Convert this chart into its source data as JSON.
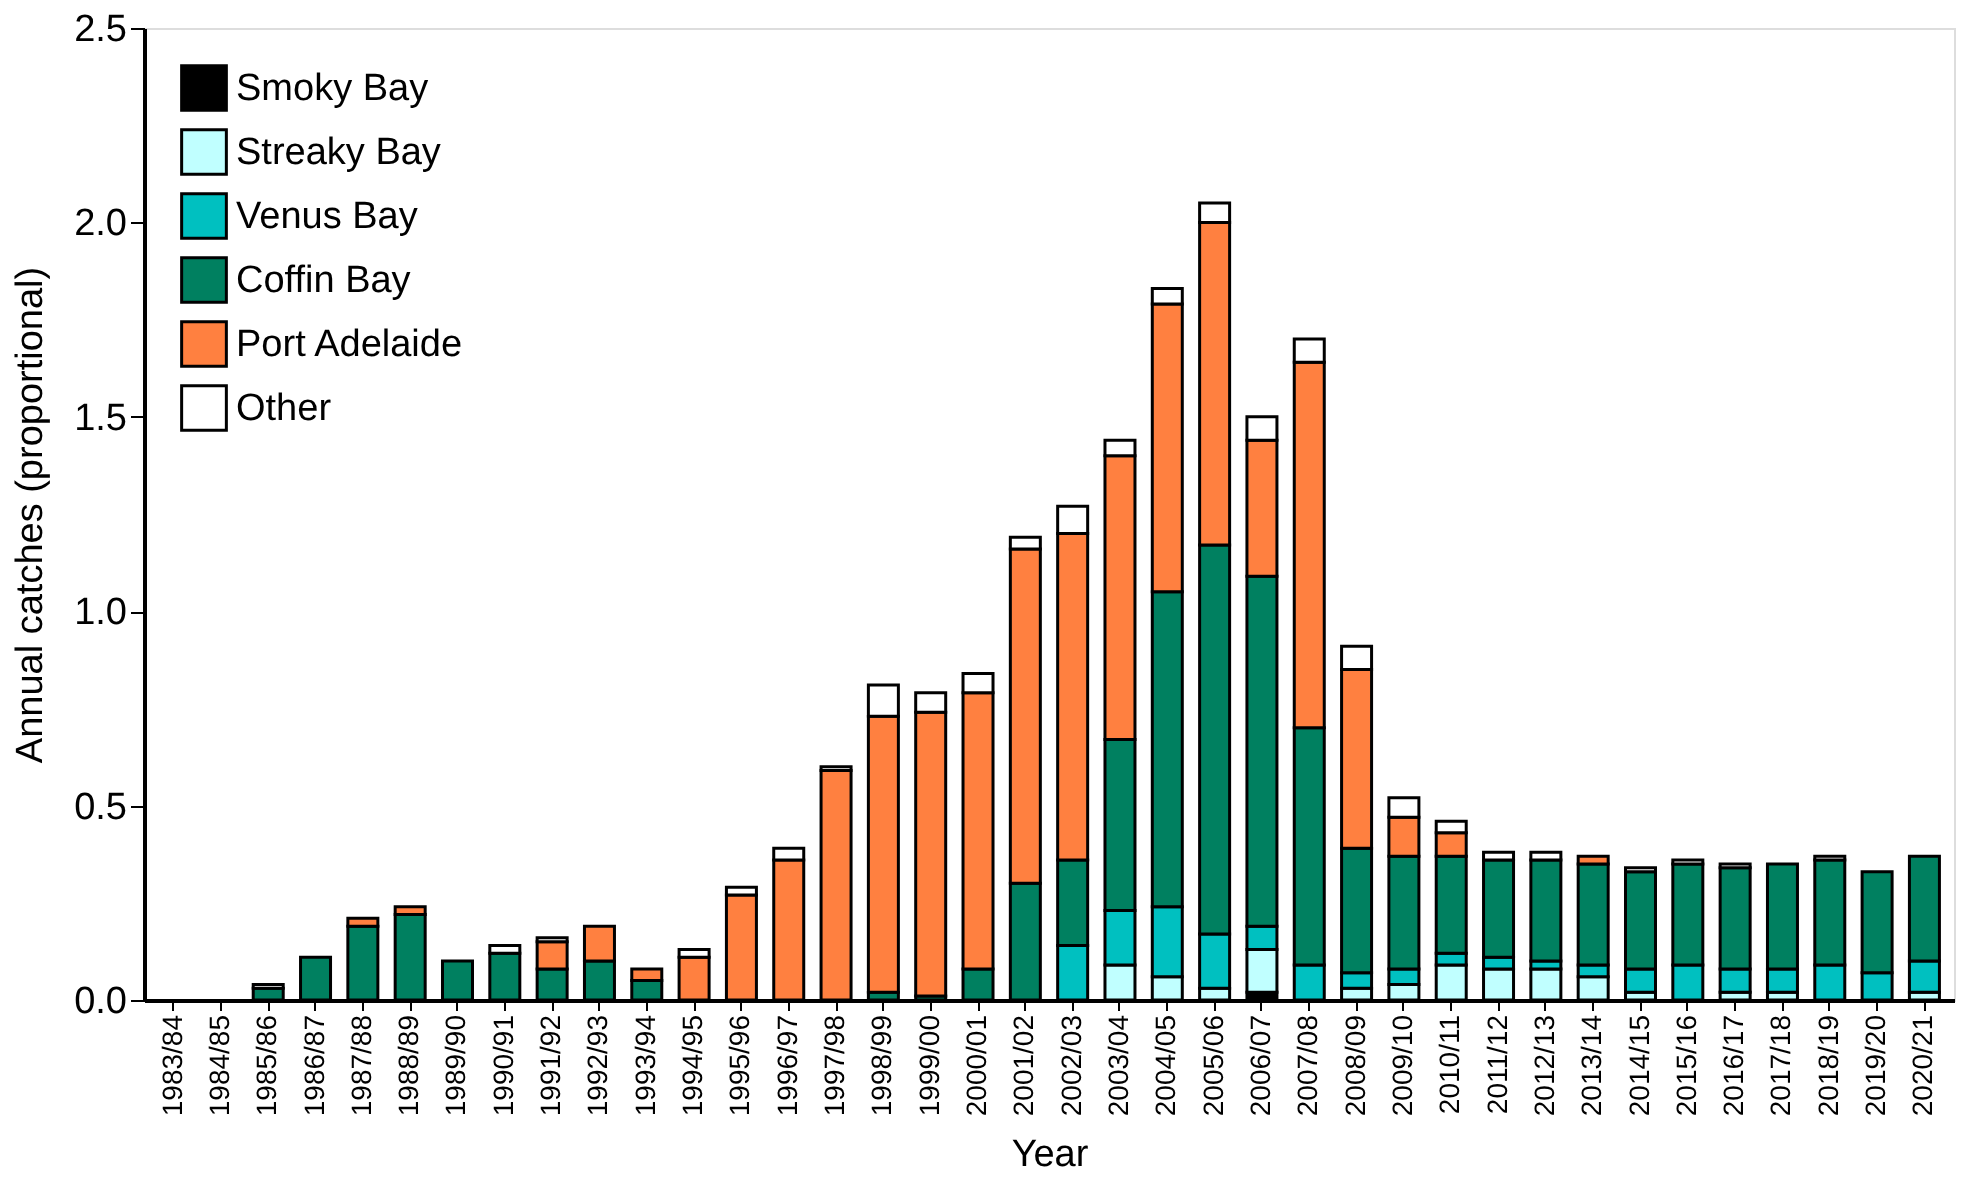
{
  "chart_data": {
    "type": "bar",
    "stacked": true,
    "xlabel": "Year",
    "ylabel": "Annual catches (proportional)",
    "categories": [
      "1983/84",
      "1984/85",
      "1985/86",
      "1986/87",
      "1987/88",
      "1988/89",
      "1989/90",
      "1990/91",
      "1991/92",
      "1992/93",
      "1993/94",
      "1994/95",
      "1995/96",
      "1996/97",
      "1997/98",
      "1998/99",
      "1999/00",
      "2000/01",
      "2001/02",
      "2002/03",
      "2003/04",
      "2004/05",
      "2005/06",
      "2006/07",
      "2007/08",
      "2008/09",
      "2009/10",
      "2010/11",
      "2011/12",
      "2012/13",
      "2013/14",
      "2014/15",
      "2015/16",
      "2016/17",
      "2017/18",
      "2018/19",
      "2019/20",
      "2020/21"
    ],
    "series": [
      {
        "name": "Smoky Bay",
        "color": "#000000",
        "values": [
          null,
          null,
          null,
          null,
          null,
          null,
          null,
          null,
          null,
          null,
          null,
          null,
          null,
          null,
          null,
          null,
          null,
          null,
          null,
          null,
          null,
          null,
          null,
          0.02,
          null,
          null,
          null,
          null,
          null,
          null,
          null,
          null,
          null,
          null,
          null,
          null,
          null,
          null
        ]
      },
      {
        "name": "Streaky Bay",
        "color": "#c0ffff",
        "values": [
          null,
          null,
          null,
          null,
          null,
          null,
          null,
          null,
          null,
          null,
          null,
          null,
          null,
          null,
          null,
          null,
          null,
          null,
          null,
          null,
          0.09,
          0.06,
          0.03,
          0.11,
          null,
          0.03,
          0.04,
          0.09,
          0.08,
          0.08,
          0.06,
          0.02,
          null,
          0.02,
          0.02,
          null,
          null,
          0.02
        ]
      },
      {
        "name": "Venus Bay",
        "color": "#00c0c0",
        "values": [
          null,
          null,
          null,
          null,
          null,
          null,
          null,
          null,
          null,
          null,
          null,
          null,
          null,
          null,
          null,
          null,
          null,
          null,
          null,
          0.14,
          0.14,
          0.18,
          0.14,
          0.06,
          0.09,
          0.04,
          0.04,
          0.03,
          0.03,
          0.02,
          0.03,
          0.06,
          0.09,
          0.06,
          0.06,
          0.09,
          0.07,
          0.08
        ]
      },
      {
        "name": "Coffin Bay",
        "color": "#008060",
        "values": [
          null,
          null,
          0.03,
          0.11,
          0.19,
          0.22,
          0.1,
          0.12,
          0.08,
          0.1,
          0.05,
          null,
          null,
          null,
          null,
          0.02,
          0.01,
          0.08,
          0.3,
          0.22,
          0.44,
          0.81,
          1.0,
          0.9,
          0.61,
          0.32,
          0.29,
          0.25,
          0.25,
          0.26,
          0.26,
          0.25,
          0.26,
          0.26,
          0.27,
          0.27,
          0.26,
          0.27
        ]
      },
      {
        "name": "Port Adelaide",
        "color": "#ff8040",
        "values": [
          null,
          null,
          null,
          null,
          0.02,
          0.02,
          null,
          null,
          0.07,
          0.09,
          0.03,
          0.11,
          0.27,
          0.36,
          0.59,
          0.71,
          0.73,
          0.71,
          0.86,
          0.84,
          0.73,
          0.74,
          0.83,
          0.35,
          0.94,
          0.46,
          0.1,
          0.06,
          null,
          null,
          0.02,
          null,
          null,
          null,
          null,
          null,
          null,
          null
        ]
      },
      {
        "name": "Other",
        "color": "#ffffff",
        "values": [
          null,
          null,
          0.01,
          null,
          null,
          null,
          null,
          0.02,
          0.01,
          null,
          null,
          0.02,
          0.02,
          0.03,
          0.01,
          0.08,
          0.05,
          0.05,
          0.03,
          0.07,
          0.04,
          0.04,
          0.05,
          0.06,
          0.06,
          0.06,
          0.05,
          0.03,
          0.02,
          0.02,
          null,
          0.01,
          0.01,
          0.01,
          null,
          0.01,
          null,
          null
        ]
      }
    ],
    "ylim": [
      0,
      2.5
    ],
    "yticks": [
      {
        "value": 0,
        "label": "0.0"
      },
      {
        "value": 0.5,
        "label": "0.5"
      },
      {
        "value": 1,
        "label": "1.0"
      },
      {
        "value": 1.5,
        "label": "1.5"
      },
      {
        "value": 2,
        "label": "2.0"
      },
      {
        "value": 2.5,
        "label": "2.5"
      }
    ],
    "grid": false,
    "legend": "top left"
  }
}
